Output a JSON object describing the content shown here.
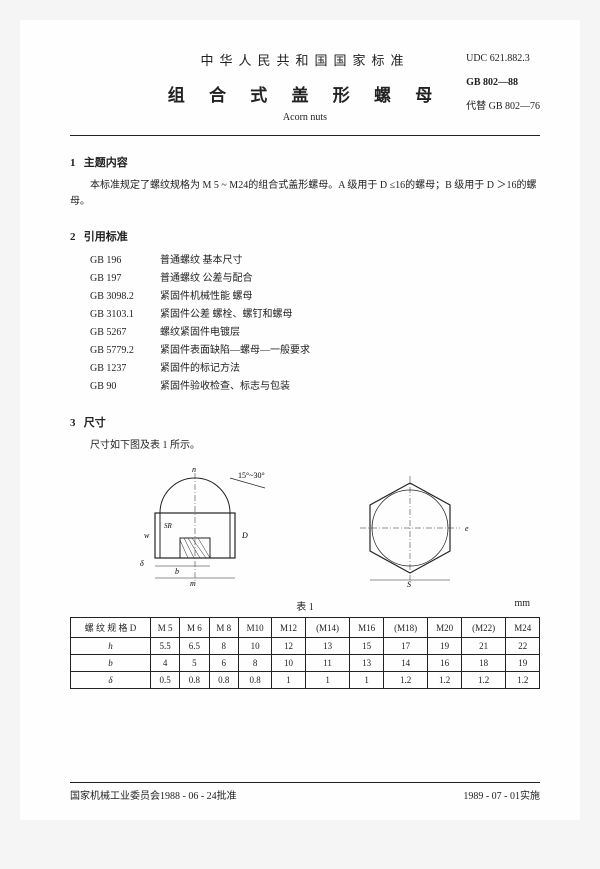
{
  "header": {
    "nation": "中华人民共和国国家标准",
    "title": "组 合 式 盖 形 螺 母",
    "subtitle": "Acorn nuts",
    "udc": "UDC 621.882.3",
    "code": "GB 802—88",
    "replaces": "代替 GB 802—76"
  },
  "sec1": {
    "num": "1",
    "title": "主题内容",
    "body": "本标准规定了螺纹规格为 M 5 ~ M24的组合式盖形螺母。A 级用于 D ≤16的螺母；B 级用于 D ＞16的螺母。"
  },
  "sec2": {
    "num": "2",
    "title": "引用标准",
    "refs": [
      {
        "code": "GB 196",
        "name": "普通螺纹  基本尺寸"
      },
      {
        "code": "GB 197",
        "name": "普通螺纹  公差与配合"
      },
      {
        "code": "GB 3098.2",
        "name": "紧固件机械性能  螺母"
      },
      {
        "code": "GB 3103.1",
        "name": "紧固件公差  螺栓、螺钉和螺母"
      },
      {
        "code": "GB 5267",
        "name": "螺纹紧固件电镀层"
      },
      {
        "code": "GB 5779.2",
        "name": "紧固件表面缺陷—螺母—一般要求"
      },
      {
        "code": "GB 1237",
        "name": "紧固件的标记方法"
      },
      {
        "code": "GB 90",
        "name": "紧固件验收检查、标志与包装"
      }
    ]
  },
  "sec3": {
    "num": "3",
    "title": "尺寸",
    "lead": "尺寸如下图及表 1 所示。"
  },
  "diagram": {
    "angle": "15°~30°",
    "labels": {
      "h": "h",
      "SR": "SR",
      "w": "w",
      "D": "D",
      "b": "b",
      "delta": "δ",
      "m": "m",
      "S": "S",
      "e": "e"
    }
  },
  "table": {
    "title": "表 1",
    "unit": "mm",
    "header_label": "螺 纹 规 格 D",
    "cols": [
      "M 5",
      "M 6",
      "M 8",
      "M10",
      "M12",
      "(M14)",
      "M16",
      "(M18)",
      "M20",
      "(M22)",
      "M24"
    ],
    "rows": [
      {
        "label": "h",
        "vals": [
          "5.5",
          "6.5",
          "8",
          "10",
          "12",
          "13",
          "15",
          "17",
          "19",
          "21",
          "22"
        ]
      },
      {
        "label": "b",
        "vals": [
          "4",
          "5",
          "6",
          "8",
          "10",
          "11",
          "13",
          "14",
          "16",
          "18",
          "19"
        ]
      },
      {
        "label": "δ",
        "vals": [
          "0.5",
          "0.8",
          "0.8",
          "0.8",
          "1",
          "1",
          "1",
          "1.2",
          "1.2",
          "1.2",
          "1.2"
        ]
      }
    ]
  },
  "footer": {
    "left": "国家机械工业委员会1988 - 06 - 24批准",
    "right": "1989 - 07 - 01实施"
  },
  "style": {
    "page_bg": "#fefefe",
    "body_bg": "#f5f5f5",
    "text_color": "#222",
    "border_color": "#222",
    "base_font_size": 10,
    "title_font_size": 17
  }
}
